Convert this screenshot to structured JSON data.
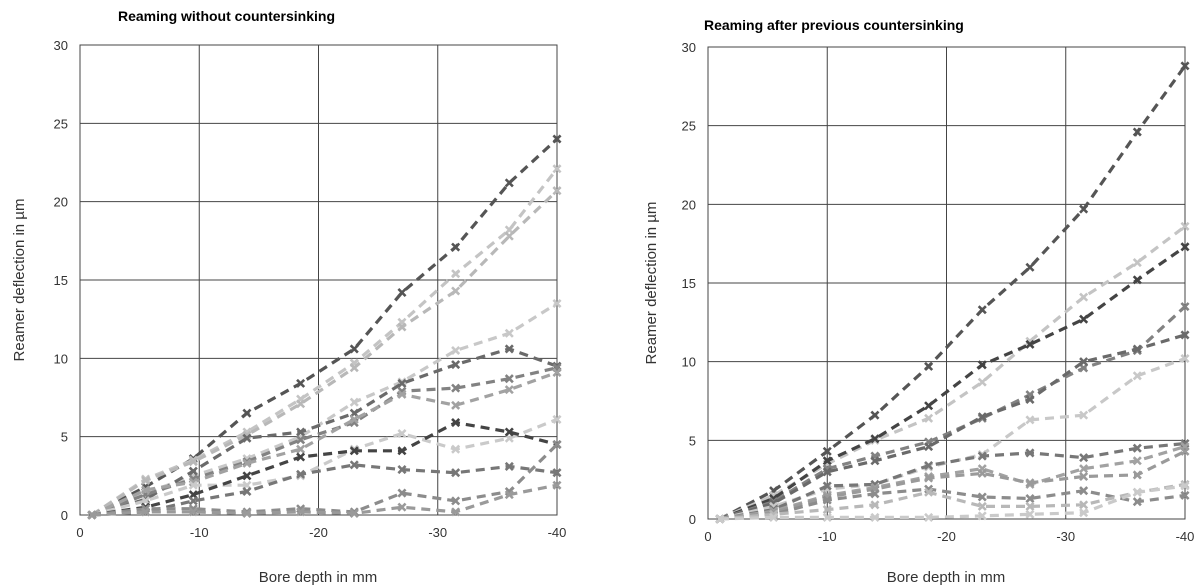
{
  "chart_data": [
    {
      "type": "line",
      "title": "Reaming without countersinking",
      "xlabel": "Bore depth in mm",
      "ylabel": "Reamer deflection in µm",
      "xlim": [
        0,
        -40
      ],
      "ylim": [
        0,
        30
      ],
      "x_ticks": [
        "0",
        "-10",
        "-20",
        "-30",
        "-40"
      ],
      "y_ticks": [
        "0",
        "5",
        "10",
        "15",
        "20",
        "25",
        "30"
      ],
      "grid": true,
      "series": [
        {
          "color": "#555555",
          "x": [
            -1,
            -5.5,
            -9.5,
            -14,
            -18.5,
            -23,
            -27,
            -31.5,
            -36,
            -40
          ],
          "y": [
            0,
            1.8,
            3.6,
            6.5,
            8.4,
            10.6,
            14.2,
            17.1,
            21.2,
            24.0
          ]
        },
        {
          "color": "#c4c4c4",
          "x": [
            -1,
            -5.5,
            -9.5,
            -14,
            -18.5,
            -23,
            -27,
            -31.5,
            -36,
            -40
          ],
          "y": [
            0,
            2.3,
            3.5,
            5.3,
            7.4,
            9.7,
            12.3,
            15.4,
            18.2,
            22.1
          ]
        },
        {
          "color": "#b8b8b8",
          "x": [
            -1,
            -5.5,
            -9.5,
            -14,
            -18.5,
            -23,
            -27,
            -31.5,
            -36,
            -40
          ],
          "y": [
            0,
            2.2,
            3.4,
            5.1,
            7.1,
            9.4,
            12.0,
            14.3,
            17.8,
            20.7
          ]
        },
        {
          "color": "#c8c8c8",
          "x": [
            -1,
            -5.5,
            -9.5,
            -14,
            -18.5,
            -23,
            -27,
            -31.5,
            -36,
            -40
          ],
          "y": [
            0,
            1.4,
            2.5,
            3.6,
            5.0,
            7.2,
            8.5,
            10.5,
            11.6,
            13.5
          ]
        },
        {
          "color": "#6a6a6a",
          "x": [
            -1,
            -5.5,
            -9.5,
            -14,
            -18.5,
            -23,
            -27,
            -31.5,
            -36,
            -40
          ],
          "y": [
            0,
            1.0,
            2.8,
            4.9,
            5.3,
            6.5,
            8.4,
            9.6,
            10.6,
            9.5
          ]
        },
        {
          "color": "#828282",
          "x": [
            -1,
            -5.5,
            -9.5,
            -14,
            -18.5,
            -23,
            -27,
            -31.5,
            -36,
            -40
          ],
          "y": [
            0,
            1.3,
            2.3,
            3.4,
            4.8,
            5.9,
            7.9,
            8.1,
            8.7,
            9.4
          ]
        },
        {
          "color": "#a2a2a2",
          "x": [
            -1,
            -5.5,
            -9.5,
            -14,
            -18.5,
            -23,
            -27,
            -31.5,
            -36,
            -40
          ],
          "y": [
            0,
            1.6,
            2.1,
            3.3,
            4.2,
            6.1,
            7.7,
            7.0,
            8.0,
            9.1
          ]
        },
        {
          "color": "#cacaca",
          "x": [
            -1,
            -5.5,
            -9.5,
            -14,
            -18.5,
            -23,
            -27,
            -31.5,
            -36,
            -40
          ],
          "y": [
            0,
            0.9,
            1.9,
            1.9,
            2.5,
            4.2,
            5.2,
            4.2,
            4.9,
            6.1
          ]
        },
        {
          "color": "#444444",
          "x": [
            -1,
            -5.5,
            -9.5,
            -14,
            -18.5,
            -23,
            -27,
            -31.5,
            -36,
            -40
          ],
          "y": [
            0,
            0.5,
            1.3,
            2.5,
            3.7,
            4.1,
            4.1,
            5.9,
            5.3,
            4.5
          ]
        },
        {
          "color": "#777777",
          "x": [
            -1,
            -5.5,
            -9.5,
            -14,
            -18.5,
            -23,
            -27,
            -31.5,
            -36,
            -40
          ],
          "y": [
            0,
            0.2,
            0.9,
            1.5,
            2.6,
            3.2,
            2.9,
            2.7,
            3.1,
            2.7
          ]
        },
        {
          "color": "#8c8c8c",
          "x": [
            -1,
            -5.5,
            -9.5,
            -14,
            -18.5,
            -23,
            -27,
            -31.5,
            -36,
            -40
          ],
          "y": [
            0,
            0.4,
            0.4,
            0.2,
            0.4,
            0.2,
            1.4,
            0.9,
            1.5,
            4.5
          ]
        },
        {
          "color": "#9a9a9a",
          "x": [
            -1,
            -5.5,
            -9.5,
            -14,
            -18.5,
            -23,
            -27,
            -31.5,
            -36,
            -40
          ],
          "y": [
            0,
            0.2,
            0.2,
            0.1,
            0.2,
            0.1,
            0.5,
            0.2,
            1.3,
            1.9
          ]
        }
      ]
    },
    {
      "type": "line",
      "title": "Reaming after previous countersinking",
      "xlabel": "Bore depth in mm",
      "ylabel": "Reamer deflection in µm",
      "xlim": [
        0,
        -40
      ],
      "ylim": [
        0,
        30
      ],
      "x_ticks": [
        "0",
        "-10",
        "-20",
        "-30",
        "-40"
      ],
      "y_ticks": [
        "0",
        "5",
        "10",
        "15",
        "20",
        "25",
        "30"
      ],
      "grid": true,
      "series": [
        {
          "color": "#555555",
          "x": [
            -1,
            -5.5,
            -10,
            -14,
            -18.5,
            -23,
            -27,
            -31.5,
            -36,
            -40
          ],
          "y": [
            0,
            1.8,
            4.3,
            6.6,
            9.7,
            13.3,
            16.0,
            19.7,
            24.6,
            28.8
          ]
        },
        {
          "color": "#c4c4c4",
          "x": [
            -1,
            -5.5,
            -10,
            -14,
            -18.5,
            -23,
            -27,
            -31.5,
            -36,
            -40
          ],
          "y": [
            0,
            1.5,
            3.5,
            5.0,
            6.4,
            8.7,
            11.3,
            14.1,
            16.3,
            18.6
          ]
        },
        {
          "color": "#444444",
          "x": [
            -1,
            -5.5,
            -10,
            -14,
            -18.5,
            -23,
            -27,
            -31.5,
            -36,
            -40
          ],
          "y": [
            0,
            1.3,
            3.7,
            5.1,
            7.2,
            9.8,
            11.1,
            12.7,
            15.2,
            17.3
          ]
        },
        {
          "color": "#828282",
          "x": [
            -1,
            -5.5,
            -10,
            -14,
            -18.5,
            -23,
            -27,
            -31.5,
            -36,
            -40
          ],
          "y": [
            0,
            1.1,
            3.2,
            4.0,
            4.9,
            6.4,
            7.9,
            9.6,
            10.7,
            13.5
          ]
        },
        {
          "color": "#6a6a6a",
          "x": [
            -1,
            -5.5,
            -10,
            -14,
            -18.5,
            -23,
            -27,
            -31.5,
            -36,
            -40
          ],
          "y": [
            0,
            1.0,
            3.0,
            3.7,
            4.6,
            6.5,
            7.6,
            10.0,
            10.8,
            11.7
          ]
        },
        {
          "color": "#c8c8c8",
          "x": [
            -1,
            -5.5,
            -10,
            -14,
            -18.5,
            -23,
            -27,
            -31.5,
            -36,
            -40
          ],
          "y": [
            0,
            0.8,
            1.9,
            2.2,
            3.3,
            4.1,
            6.3,
            6.6,
            9.1,
            10.2
          ]
        },
        {
          "color": "#777777",
          "x": [
            -1,
            -5.5,
            -10,
            -14,
            -18.5,
            -23,
            -27,
            -31.5,
            -36,
            -40
          ],
          "y": [
            0,
            0.6,
            2.1,
            2.2,
            3.4,
            4.0,
            4.2,
            3.9,
            4.5,
            4.8
          ]
        },
        {
          "color": "#a2a2a2",
          "x": [
            -1,
            -5.5,
            -10,
            -14,
            -18.5,
            -23,
            -27,
            -31.5,
            -36,
            -40
          ],
          "y": [
            0,
            0.5,
            1.5,
            2.0,
            2.7,
            3.2,
            2.2,
            3.2,
            3.7,
            4.6
          ]
        },
        {
          "color": "#9a9a9a",
          "x": [
            -1,
            -5.5,
            -10,
            -14,
            -18.5,
            -23,
            -27,
            -31.5,
            -36,
            -40
          ],
          "y": [
            0,
            0.4,
            1.4,
            1.9,
            2.6,
            2.9,
            2.3,
            2.7,
            2.8,
            4.3
          ]
        },
        {
          "color": "#8c8c8c",
          "x": [
            -1,
            -5.5,
            -10,
            -14,
            -18.5,
            -23,
            -27,
            -31.5,
            -36,
            -40
          ],
          "y": [
            0,
            0.3,
            1.2,
            1.6,
            1.9,
            1.4,
            1.3,
            1.8,
            1.1,
            1.5
          ]
        },
        {
          "color": "#b8b8b8",
          "x": [
            -1,
            -5.5,
            -10,
            -14,
            -18.5,
            -23,
            -27,
            -31.5,
            -36,
            -40
          ],
          "y": [
            0,
            0.3,
            0.6,
            0.9,
            1.7,
            0.8,
            0.8,
            0.9,
            1.7,
            2.2
          ]
        },
        {
          "color": "#cacaca",
          "x": [
            -1,
            -5.5,
            -10,
            -14,
            -18.5,
            -23,
            -27,
            -31.5,
            -36,
            -40
          ],
          "y": [
            0,
            0.1,
            0.1,
            0.1,
            0.1,
            0.2,
            0.3,
            0.4,
            1.7,
            2.1
          ]
        }
      ]
    }
  ]
}
